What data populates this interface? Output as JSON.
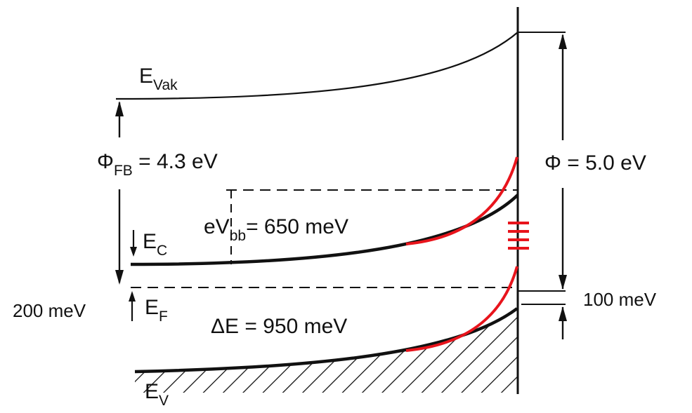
{
  "colors": {
    "ink": "#111111",
    "highlight": "#e8141c",
    "background": "#ffffff"
  },
  "labels": {
    "e_vak": {
      "main": "E",
      "sub": "Vak"
    },
    "phi_fb": {
      "main": "Φ",
      "sub": "FB",
      "rest": " = 4.3 eV"
    },
    "phi": {
      "text": "Φ = 5.0 eV"
    },
    "ev_bb": {
      "main": "eV",
      "sub": "bb",
      "rest": "= 650 meV"
    },
    "e_c": {
      "main": "E",
      "sub": "C"
    },
    "meV_200": {
      "text": "200 meV"
    },
    "e_f": {
      "main": "E",
      "sub": "F"
    },
    "delta_e": {
      "text": "ΔE = 950 meV"
    },
    "meV_100": {
      "text": "100 meV"
    },
    "e_v": {
      "main": "E",
      "sub": "V"
    }
  }
}
